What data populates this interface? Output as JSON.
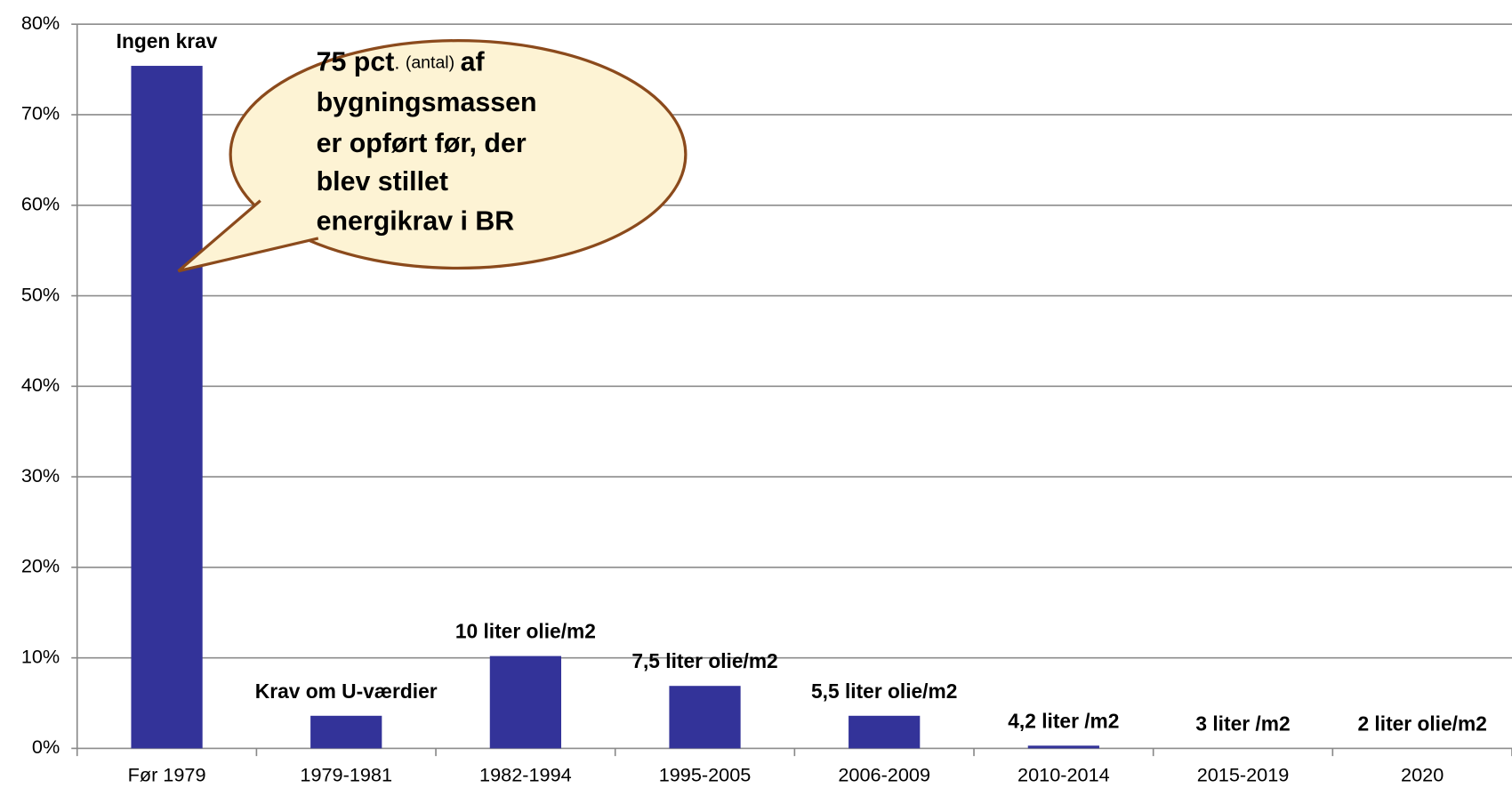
{
  "chart_data": {
    "type": "bar",
    "categories": [
      "Før 1979",
      "1979-1981",
      "1982-1994",
      "1995-2005",
      "2006-2009",
      "2010-2014",
      "2015-2019",
      "2020"
    ],
    "values": [
      75.4,
      3.6,
      10.2,
      6.9,
      3.6,
      0.3,
      0,
      0
    ],
    "color": "#333399",
    "annotations": [
      "Ingen krav",
      "Krav om U-værdier",
      "10 liter olie/m2",
      "7,5 liter olie/m2",
      "5,5 liter olie/m2",
      "4,2 liter /m2",
      "3 liter /m2",
      "2 liter olie/m2"
    ],
    "callout": {
      "first": "75 pct",
      "dot": ".",
      "small": "(antal)",
      "after": "af",
      "lines": [
        "bygningsmassen",
        "er opført før, der",
        "blev stillet",
        "energikrav i BR"
      ]
    },
    "ylim": [
      0,
      80
    ],
    "yticks": [
      {
        "value": 0,
        "label": "0%"
      },
      {
        "value": 10,
        "label": "10%"
      },
      {
        "value": 20,
        "label": "20%"
      },
      {
        "value": 30,
        "label": "30%"
      },
      {
        "value": 40,
        "label": "40%"
      },
      {
        "value": 50,
        "label": "50%"
      },
      {
        "value": 60,
        "label": "60%"
      },
      {
        "value": 70,
        "label": "70%"
      },
      {
        "value": 80,
        "label": "80%"
      }
    ],
    "grid": true
  }
}
